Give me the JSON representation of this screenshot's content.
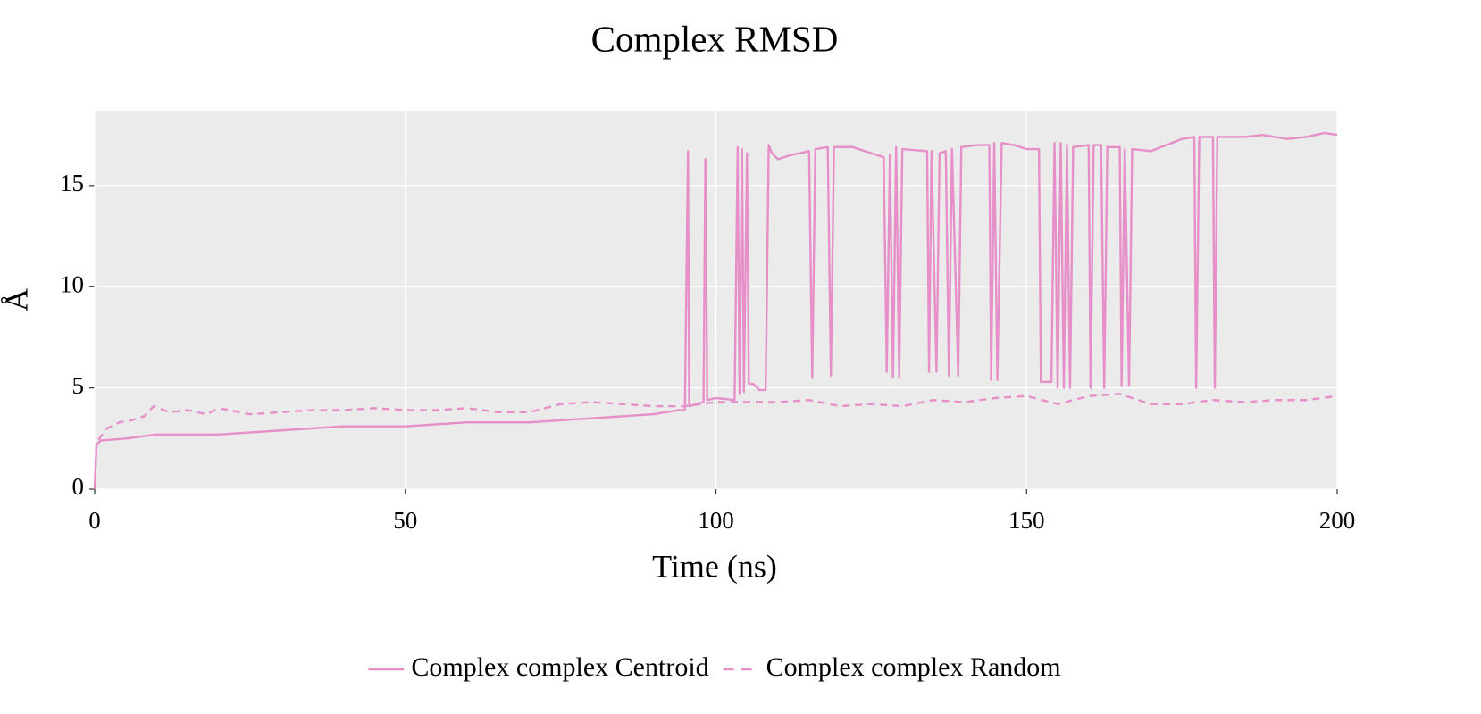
{
  "chart_data": {
    "type": "line",
    "title": "Complex RMSD",
    "x_label": "Time (ns)",
    "y_label": "Å",
    "xlim": [
      0,
      200
    ],
    "ylim": [
      0,
      18.7
    ],
    "xticks": [
      0,
      50,
      100,
      150,
      200
    ],
    "yticks": [
      0,
      5,
      10,
      15
    ],
    "grid": true,
    "legend": "bottom",
    "series": [
      {
        "name": "Complex complex Centroid",
        "color": "#e68fc8",
        "dash": false,
        "x": [
          0,
          0.3,
          1,
          5,
          10,
          20,
          30,
          40,
          50,
          60,
          70,
          80,
          90,
          94,
          95,
          95.5,
          95.7,
          98,
          98.3,
          98.6,
          100,
          103,
          103.5,
          103.8,
          104.2,
          104.5,
          105,
          105.3,
          106,
          107,
          108,
          108.5,
          109,
          110,
          112,
          115,
          115.5,
          116,
          118,
          118.5,
          119,
          122,
          125,
          127,
          127.5,
          128,
          128.5,
          129,
          129.5,
          130,
          134,
          134.3,
          134.7,
          135.5,
          136,
          137,
          137.5,
          138,
          139,
          139.5,
          142,
          144,
          144.3,
          144.8,
          145.3,
          146,
          148,
          150,
          152,
          152.3,
          154,
          154.5,
          155,
          155.5,
          156,
          156.5,
          157,
          157.5,
          160,
          160.3,
          160.8,
          162,
          162.5,
          163,
          165,
          165.3,
          165.8,
          166.5,
          167,
          170,
          175,
          177,
          177.3,
          177.8,
          180,
          180.3,
          180.7,
          185,
          188,
          192,
          195,
          198,
          200
        ],
        "values": [
          0,
          2.2,
          2.4,
          2.5,
          2.7,
          2.7,
          2.9,
          3.1,
          3.1,
          3.3,
          3.3,
          3.5,
          3.7,
          3.9,
          3.9,
          16.7,
          4.1,
          4.3,
          16.3,
          4.4,
          4.5,
          4.4,
          16.9,
          4.7,
          16.8,
          4.8,
          16.6,
          5.2,
          5.2,
          4.9,
          4.9,
          17.0,
          16.6,
          16.3,
          16.5,
          16.7,
          5.5,
          16.8,
          16.9,
          5.6,
          16.9,
          16.9,
          16.6,
          16.4,
          5.8,
          16.5,
          5.5,
          16.9,
          5.5,
          16.8,
          16.7,
          5.8,
          16.7,
          5.8,
          16.6,
          16.7,
          5.6,
          16.8,
          5.6,
          16.9,
          17.0,
          17.0,
          5.4,
          17.1,
          5.4,
          17.1,
          17.0,
          16.8,
          16.8,
          5.3,
          5.3,
          17.1,
          5.0,
          17.1,
          5.0,
          17.0,
          5.0,
          16.9,
          17.0,
          5.0,
          17.0,
          17.0,
          5.0,
          16.9,
          16.9,
          5.1,
          16.8,
          5.1,
          16.8,
          16.7,
          17.3,
          17.4,
          5.0,
          17.4,
          17.4,
          5.0,
          17.4,
          17.4,
          17.5,
          17.3,
          17.4,
          17.6,
          17.5
        ]
      },
      {
        "name": "Complex complex Random",
        "color": "#e68fc8",
        "dash": true,
        "x": [
          0,
          0.3,
          1,
          2,
          4,
          6,
          8,
          9.5,
          12,
          15,
          18,
          20,
          25,
          30,
          35,
          40,
          45,
          50,
          55,
          60,
          65,
          70,
          75,
          80,
          85,
          90,
          95,
          100,
          105,
          110,
          115,
          120,
          125,
          130,
          135,
          140,
          145,
          150,
          155,
          160,
          165,
          170,
          175,
          180,
          185,
          190,
          195,
          200
        ],
        "values": [
          0,
          2.3,
          2.6,
          3.0,
          3.3,
          3.4,
          3.6,
          4.1,
          3.8,
          3.9,
          3.7,
          4.0,
          3.7,
          3.8,
          3.9,
          3.9,
          4.0,
          3.9,
          3.9,
          4.0,
          3.8,
          3.8,
          4.2,
          4.3,
          4.2,
          4.1,
          4.1,
          4.3,
          4.3,
          4.3,
          4.4,
          4.1,
          4.2,
          4.1,
          4.4,
          4.3,
          4.5,
          4.6,
          4.2,
          4.6,
          4.7,
          4.2,
          4.2,
          4.4,
          4.3,
          4.4,
          4.4,
          4.6
        ]
      }
    ]
  }
}
